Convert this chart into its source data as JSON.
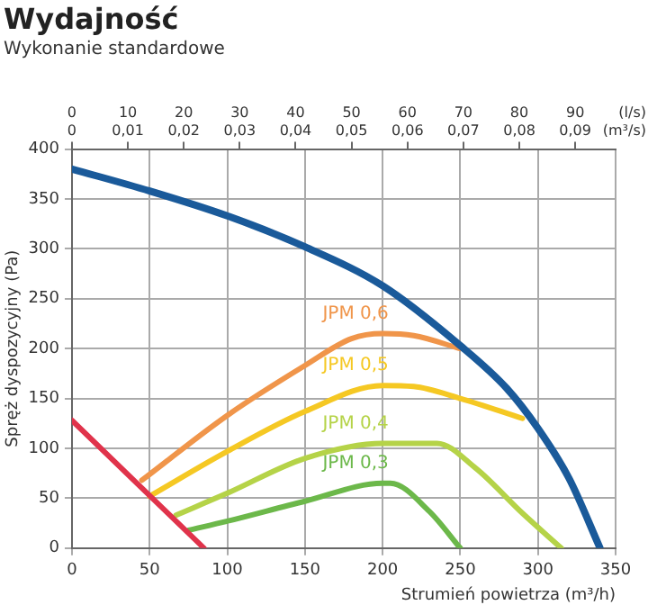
{
  "chart_data": {
    "type": "line",
    "title": "Wydajność",
    "subtitle": "Wykonanie standardowe",
    "xlabel": "Strumień powietrza (m³/h)",
    "ylabel": "Spręż dyspozycyjny (Pa)",
    "x2label": "(l/s)",
    "annotations": [
      "0",
      "0,01",
      "0,02",
      "0,03",
      "0,04",
      "0,05",
      "0,06",
      "0,07",
      "0,08",
      "0,09",
      "(m³/s)"
    ],
    "xlim": [
      0,
      350
    ],
    "xticks": [
      0,
      50,
      100,
      150,
      200,
      250,
      300,
      350
    ],
    "ylim": [
      0,
      400
    ],
    "yticks": [
      0,
      50,
      100,
      150,
      200,
      250,
      300,
      350,
      400
    ],
    "x2lim": [
      0,
      97.22
    ],
    "x2ticks": [
      0,
      10,
      20,
      30,
      40,
      50,
      60,
      70,
      80,
      90
    ],
    "grid": true,
    "legend": false,
    "marker": "none",
    "line_style": "solid",
    "series": [
      {
        "color": "#1a5a9a",
        "x": [
          0,
          50,
          100,
          150,
          200,
          250,
          280,
          300,
          320,
          340
        ],
        "values": [
          380,
          358,
          333,
          302,
          263,
          203,
          160,
          120,
          70,
          0
        ]
      },
      {
        "color": "#e0334b",
        "x": [
          0,
          85
        ],
        "values": [
          128,
          0
        ]
      },
      {
        "name": "JPM 0,6",
        "color": "#f0954a",
        "x": [
          45,
          100,
          150,
          180,
          200,
          220,
          250
        ],
        "values": [
          68,
          133,
          183,
          210,
          215,
          213,
          200
        ]
      },
      {
        "name": "JPM 0,5",
        "color": "#f5c823",
        "x": [
          50,
          100,
          150,
          200,
          220,
          250,
          290
        ],
        "values": [
          52,
          97,
          137,
          163,
          162,
          150,
          130
        ]
      },
      {
        "name": "JPM 0,4",
        "color": "#b5d348",
        "x": [
          67,
          100,
          150,
          200,
          235,
          260,
          290,
          315
        ],
        "values": [
          33,
          55,
          90,
          105,
          105,
          80,
          35,
          0
        ]
      },
      {
        "name": "JPM 0,3",
        "color": "#6cb84a",
        "x": [
          75,
          100,
          150,
          200,
          205,
          230,
          250
        ],
        "values": [
          18,
          27,
          47,
          65,
          65,
          37,
          0
        ]
      }
    ]
  }
}
